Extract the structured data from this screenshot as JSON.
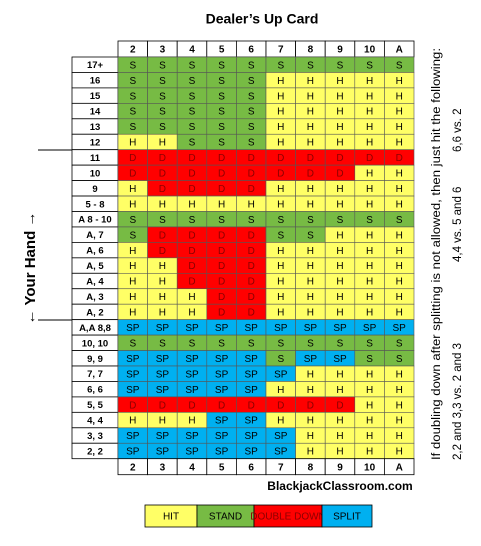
{
  "title": "Dealer’s Up Card",
  "columns": [
    "2",
    "3",
    "4",
    "5",
    "6",
    "7",
    "8",
    "9",
    "10",
    "A"
  ],
  "rows": [
    {
      "label": "17+",
      "cells": [
        "S",
        "S",
        "S",
        "S",
        "S",
        "S",
        "S",
        "S",
        "S",
        "S"
      ]
    },
    {
      "label": "16",
      "cells": [
        "S",
        "S",
        "S",
        "S",
        "S",
        "H",
        "H",
        "H",
        "H",
        "H"
      ]
    },
    {
      "label": "15",
      "cells": [
        "S",
        "S",
        "S",
        "S",
        "S",
        "H",
        "H",
        "H",
        "H",
        "H"
      ]
    },
    {
      "label": "14",
      "cells": [
        "S",
        "S",
        "S",
        "S",
        "S",
        "H",
        "H",
        "H",
        "H",
        "H"
      ]
    },
    {
      "label": "13",
      "cells": [
        "S",
        "S",
        "S",
        "S",
        "S",
        "H",
        "H",
        "H",
        "H",
        "H"
      ]
    },
    {
      "label": "12",
      "cells": [
        "H",
        "H",
        "S",
        "S",
        "S",
        "H",
        "H",
        "H",
        "H",
        "H"
      ]
    },
    {
      "label": "11",
      "cells": [
        "D",
        "D",
        "D",
        "D",
        "D",
        "D",
        "D",
        "D",
        "D",
        "D"
      ]
    },
    {
      "label": "10",
      "cells": [
        "D",
        "D",
        "D",
        "D",
        "D",
        "D",
        "D",
        "D",
        "H",
        "H"
      ]
    },
    {
      "label": "9",
      "cells": [
        "H",
        "D",
        "D",
        "D",
        "D",
        "H",
        "H",
        "H",
        "H",
        "H"
      ]
    },
    {
      "label": "5 - 8",
      "cells": [
        "H",
        "H",
        "H",
        "H",
        "H",
        "H",
        "H",
        "H",
        "H",
        "H"
      ]
    },
    {
      "label": "A 8 - 10",
      "cells": [
        "S",
        "S",
        "S",
        "S",
        "S",
        "S",
        "S",
        "S",
        "S",
        "S"
      ]
    },
    {
      "label": "A, 7",
      "cells": [
        "S",
        "D",
        "D",
        "D",
        "D",
        "S",
        "S",
        "H",
        "H",
        "H"
      ]
    },
    {
      "label": "A, 6",
      "cells": [
        "H",
        "D",
        "D",
        "D",
        "D",
        "H",
        "H",
        "H",
        "H",
        "H"
      ]
    },
    {
      "label": "A, 5",
      "cells": [
        "H",
        "H",
        "D",
        "D",
        "D",
        "H",
        "H",
        "H",
        "H",
        "H"
      ]
    },
    {
      "label": "A, 4",
      "cells": [
        "H",
        "H",
        "D",
        "D",
        "D",
        "H",
        "H",
        "H",
        "H",
        "H"
      ]
    },
    {
      "label": "A, 3",
      "cells": [
        "H",
        "H",
        "H",
        "D",
        "D",
        "H",
        "H",
        "H",
        "H",
        "H"
      ]
    },
    {
      "label": "A, 2",
      "cells": [
        "H",
        "H",
        "H",
        "D",
        "D",
        "H",
        "H",
        "H",
        "H",
        "H"
      ]
    },
    {
      "label": "A,A 8,8",
      "cells": [
        "SP",
        "SP",
        "SP",
        "SP",
        "SP",
        "SP",
        "SP",
        "SP",
        "SP",
        "SP"
      ]
    },
    {
      "label": "10, 10",
      "cells": [
        "S",
        "S",
        "S",
        "S",
        "S",
        "S",
        "S",
        "S",
        "S",
        "S"
      ]
    },
    {
      "label": "9, 9",
      "cells": [
        "SP",
        "SP",
        "SP",
        "SP",
        "SP",
        "S",
        "SP",
        "SP",
        "S",
        "S"
      ]
    },
    {
      "label": "7, 7",
      "cells": [
        "SP",
        "SP",
        "SP",
        "SP",
        "SP",
        "SP",
        "H",
        "H",
        "H",
        "H"
      ]
    },
    {
      "label": "6, 6",
      "cells": [
        "SP",
        "SP",
        "SP",
        "SP",
        "SP",
        "H",
        "H",
        "H",
        "H",
        "H"
      ]
    },
    {
      "label": "5, 5",
      "cells": [
        "D",
        "D",
        "D",
        "D",
        "D",
        "D",
        "D",
        "D",
        "H",
        "H"
      ]
    },
    {
      "label": "4, 4",
      "cells": [
        "H",
        "H",
        "H",
        "SP",
        "SP",
        "H",
        "H",
        "H",
        "H",
        "H"
      ]
    },
    {
      "label": "3, 3",
      "cells": [
        "SP",
        "SP",
        "SP",
        "SP",
        "SP",
        "SP",
        "H",
        "H",
        "H",
        "H"
      ]
    },
    {
      "label": "2, 2",
      "cells": [
        "SP",
        "SP",
        "SP",
        "SP",
        "SP",
        "SP",
        "H",
        "H",
        "H",
        "H"
      ]
    }
  ],
  "side_label": "← Your Hand →",
  "website": "BlackjackClassroom.com",
  "legend": [
    {
      "label": "HIT",
      "code": "H",
      "color": "#ffff66",
      "text_color": "#000000"
    },
    {
      "label": "STAND",
      "code": "S",
      "color": "#77bb44",
      "text_color": "#000000"
    },
    {
      "label": "DOUBLE DOWN",
      "code": "D",
      "color": "#ff0000",
      "text_color": "#8b0000"
    },
    {
      "label": "SPLIT",
      "code": "SP",
      "color": "#00b0f0",
      "text_color": "#000000"
    }
  ],
  "note": {
    "line1": "If doubling down after splitting is not allowed, then just hit the following:",
    "items": [
      "2,2 and 3,3 vs. 2 and 3",
      "4,4 vs. 5 and 6",
      "6,6 vs. 2"
    ]
  }
}
